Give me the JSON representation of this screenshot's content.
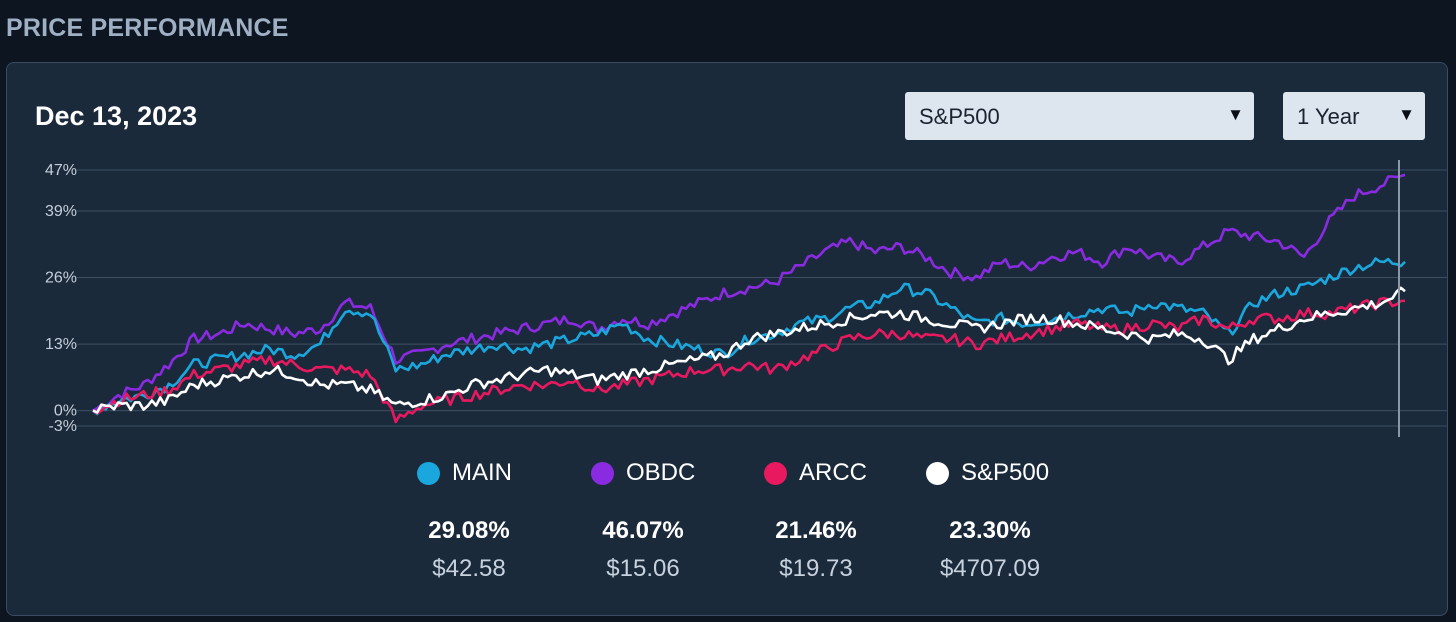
{
  "header": {
    "title": "PRICE PERFORMANCE"
  },
  "panel": {
    "date": "Dec 13, 2023",
    "benchmark_select": {
      "value": "S&P500",
      "icon": "triangle-down-icon"
    },
    "period_select": {
      "value": "1 Year",
      "icon": "triangle-down-icon"
    }
  },
  "colors": {
    "MAIN": "#1aa7de",
    "OBDC": "#8a2be2",
    "ARCC": "#e8195f",
    "SP500": "#ffffff",
    "grid": "#3d4f63",
    "cursor": "#8a97a6"
  },
  "legend": [
    {
      "key": "MAIN",
      "label": "MAIN",
      "pct": "29.08%",
      "price": "$42.58"
    },
    {
      "key": "OBDC",
      "label": "OBDC",
      "pct": "46.07%",
      "price": "$15.06"
    },
    {
      "key": "ARCC",
      "label": "ARCC",
      "pct": "21.46%",
      "price": "$19.73"
    },
    {
      "key": "SP500",
      "label": "S&P500",
      "pct": "23.30%",
      "price": "$4707.09"
    }
  ],
  "chart_data": {
    "type": "line",
    "y_tick_labels": [
      "47%",
      "39%",
      "26%",
      "13%",
      "0%",
      "-3%"
    ],
    "y_ticks": [
      47,
      39,
      26,
      13,
      0,
      -3
    ],
    "ylim": [
      -3,
      47
    ],
    "x_range": "1 Year",
    "grid": true,
    "legend_position": "bottom",
    "x": [
      0,
      1,
      2,
      3,
      4,
      5,
      6,
      7,
      8,
      9,
      10,
      11,
      12,
      13,
      14,
      15,
      16,
      17,
      18,
      19,
      20,
      21,
      22,
      23,
      24,
      25,
      26,
      27,
      28,
      29,
      30,
      31,
      32,
      33,
      34,
      35,
      36,
      37,
      38,
      39,
      40,
      41,
      42,
      43,
      44,
      45,
      46,
      47,
      48,
      49,
      50,
      51,
      52
    ],
    "series": [
      {
        "name": "MAIN",
        "values": [
          0,
          2,
          3,
          5,
          9,
          10,
          11,
          12,
          11,
          13,
          20,
          19,
          8,
          9,
          11,
          12,
          13,
          12,
          13,
          14,
          15,
          17,
          14,
          13,
          12,
          11,
          14,
          15,
          17,
          18,
          20,
          21,
          24,
          23,
          20,
          17,
          18,
          17,
          18,
          19,
          20,
          19,
          21,
          20,
          19,
          15,
          21,
          23,
          24,
          26,
          28,
          29,
          29.08
        ]
      },
      {
        "name": "OBDC",
        "values": [
          0,
          3,
          5,
          9,
          14,
          15,
          17,
          16,
          15,
          16,
          21,
          20,
          10,
          11,
          13,
          14,
          15,
          16,
          17,
          18,
          16,
          18,
          17,
          19,
          21,
          23,
          24,
          25,
          28,
          31,
          33,
          31,
          32,
          30,
          27,
          26,
          29,
          28,
          30,
          31,
          29,
          32,
          30,
          29,
          32,
          35,
          34,
          33,
          30,
          37,
          42,
          44,
          46.07
        ]
      },
      {
        "name": "ARCC",
        "values": [
          0,
          2,
          3,
          4,
          7,
          8,
          9,
          10,
          9,
          8,
          8,
          7,
          -2,
          1,
          2,
          3,
          4,
          5,
          5,
          6,
          4,
          5,
          6,
          7,
          8,
          8,
          9,
          8,
          10,
          12,
          14,
          15,
          15,
          14,
          14,
          13,
          14,
          15,
          16,
          17,
          16,
          16,
          17,
          16,
          18,
          16,
          18,
          18,
          19,
          19,
          20,
          21,
          21.46
        ]
      },
      {
        "name": "S&P500",
        "values": [
          0,
          1,
          1,
          2,
          5,
          6,
          7,
          8,
          7,
          5,
          5,
          4,
          1,
          2,
          3,
          5,
          6,
          7,
          8,
          7,
          6,
          7,
          8,
          9,
          10,
          11,
          14,
          15,
          16,
          17,
          18,
          19,
          19,
          18,
          17,
          16,
          17,
          18,
          18,
          17,
          16,
          15,
          14,
          15,
          14,
          10,
          14,
          16,
          18,
          19,
          20,
          21,
          23.3
        ]
      }
    ]
  }
}
